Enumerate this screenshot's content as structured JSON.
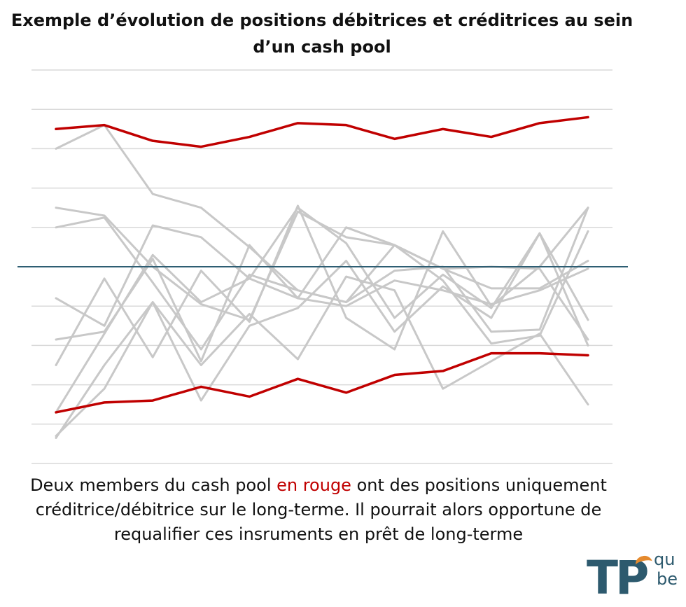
{
  "title": "Exemple d’évolution de positions débitrices et créditrices au sein d’un cash pool",
  "caption": {
    "before": "Deux members du cash pool ",
    "highlight": "en rouge",
    "after": " ont des positions uniquement créditrice/débitrice sur le long-terme. Il pourrait alors opportune de requalifier ces insruments en prêt de long-terme"
  },
  "logo": {
    "main": "TP",
    "top": "qu",
    "bottom": "be"
  },
  "colors": {
    "red": "#c00000",
    "gray": "#c8c8c8",
    "baseline": "#2e5e73",
    "grid": "#d9d9d9",
    "logo_blue": "#2d5a6e",
    "logo_orange": "#e58a2e"
  },
  "chart_data": {
    "type": "line",
    "x": [
      1,
      2,
      3,
      4,
      5,
      6,
      7,
      8,
      9,
      10,
      11,
      12
    ],
    "ylim": [
      -5,
      5
    ],
    "grid": true,
    "gridlines": [
      -5,
      -4,
      -3,
      -2,
      -1,
      0,
      1,
      2,
      3,
      4,
      5
    ],
    "baseline": 0,
    "highlight_series": [
      {
        "values": [
          3.5,
          3.6,
          3.2,
          3.05,
          3.3,
          3.65,
          3.6,
          3.25,
          3.5,
          3.3,
          3.65,
          3.8
        ]
      },
      {
        "values": [
          -3.7,
          -3.45,
          -3.4,
          -3.05,
          -3.3,
          -2.85,
          -3.2,
          -2.75,
          -2.65,
          -2.2,
          -2.2,
          -2.25
        ]
      }
    ],
    "series": [
      {
        "values": [
          3.0,
          3.6,
          1.85,
          1.5,
          0.5,
          -0.6,
          -0.9,
          -0.1,
          0.0,
          -1.65,
          -1.6,
          1.5
        ]
      },
      {
        "values": [
          1.5,
          1.3,
          0.0,
          -0.95,
          -1.35,
          1.4,
          0.75,
          0.55,
          -0.05,
          -0.55,
          -0.55,
          0.15
        ]
      },
      {
        "values": [
          1.0,
          1.25,
          -0.4,
          -2.1,
          -0.2,
          -0.6,
          -0.9,
          0.55,
          -0.35,
          -1.95,
          -1.75,
          0.9
        ]
      },
      {
        "values": [
          -0.8,
          -1.5,
          1.05,
          0.75,
          -0.3,
          1.5,
          0.6,
          -1.3,
          -0.2,
          -1.05,
          0.85,
          -1.35
        ]
      },
      {
        "values": [
          -1.85,
          -1.65,
          0.2,
          -2.4,
          0.55,
          -0.8,
          1.0,
          0.55,
          -0.05,
          0.0,
          -0.05,
          -1.85
        ]
      },
      {
        "values": [
          -2.5,
          -0.3,
          -2.3,
          -0.1,
          -1.4,
          1.55,
          -1.3,
          -2.1,
          0.9,
          -1.0,
          0.0,
          1.5
        ]
      },
      {
        "values": [
          -4.3,
          -3.1,
          -0.9,
          -3.4,
          -1.5,
          -1.05,
          0.15,
          -1.65,
          -0.5,
          -1.3,
          0.85,
          -2.0
        ]
      },
      {
        "values": [
          -4.35,
          -2.5,
          -0.9,
          -2.5,
          -1.2,
          -2.35,
          -0.25,
          -0.6,
          -3.1,
          -2.4,
          -1.7,
          -3.5
        ]
      },
      {
        "values": [
          -3.7,
          -1.7,
          0.3,
          -0.9,
          -0.3,
          -0.8,
          -1.0,
          -0.35,
          -0.6,
          -0.95,
          -0.6,
          -0.05
        ]
      }
    ]
  }
}
